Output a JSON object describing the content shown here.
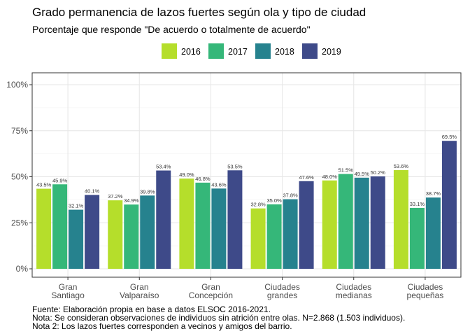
{
  "title": "Grado permanencia de lazos fuertes  según ola y tipo de ciudad",
  "subtitle": "Porcentaje que responde \"De acuerdo o totalmente de acuerdo\"",
  "caption": [
    "Fuente: Elaboración propia en base a datos ELSOC 2016-2021.",
    "Nota: Se consideran observaciones de individuos sin atrición entre olas. N=2.868 (1.503 individuos).",
    "Nota 2: Los lazos fuertes corresponden a vecinos y amigos del barrio."
  ],
  "chart_data": {
    "type": "bar",
    "title": "Grado permanencia de lazos fuertes  según ola y tipo de ciudad",
    "subtitle": "Porcentaje que responde \"De acuerdo o totalmente de acuerdo\"",
    "xlabel": "",
    "ylabel": "",
    "ylim": [
      0,
      1
    ],
    "yticks": [
      0,
      0.25,
      0.5,
      0.75,
      1.0
    ],
    "ytick_labels": [
      "0%",
      "25%",
      "50%",
      "75%",
      "100%"
    ],
    "grid": true,
    "legend_position": "top",
    "categories": [
      [
        "Gran",
        "Santiago"
      ],
      [
        "Gran",
        "Valparaíso"
      ],
      [
        "Gran",
        "Concepción"
      ],
      [
        "Ciudades",
        "grandes"
      ],
      [
        "Ciudades",
        "medianas"
      ],
      [
        "Ciudades",
        "pequeñas"
      ]
    ],
    "series": [
      {
        "name": "2016",
        "color": "#B5DE2B",
        "values": [
          0.435,
          0.372,
          0.49,
          0.328,
          0.48,
          0.536
        ],
        "labels": [
          "43.5%",
          "37.2%",
          "49.0%",
          "32.8%",
          "48.0%",
          "53.6%"
        ]
      },
      {
        "name": "2017",
        "color": "#35B779",
        "values": [
          0.459,
          0.349,
          0.468,
          0.35,
          0.515,
          0.331
        ],
        "labels": [
          "45.9%",
          "34.9%",
          "46.8%",
          "35.0%",
          "51.5%",
          "33.1%"
        ]
      },
      {
        "name": "2018",
        "color": "#26828E",
        "values": [
          0.321,
          0.398,
          0.436,
          0.378,
          0.495,
          0.387
        ],
        "labels": [
          "32.1%",
          "39.8%",
          "43.6%",
          "37.8%",
          "49.5%",
          "38.7%"
        ]
      },
      {
        "name": "2019",
        "color": "#3E4A89",
        "values": [
          0.401,
          0.534,
          0.535,
          0.476,
          0.502,
          0.695
        ],
        "labels": [
          "40.1%",
          "53.4%",
          "53.5%",
          "47.6%",
          "50.2%",
          "69.5%"
        ]
      }
    ]
  }
}
